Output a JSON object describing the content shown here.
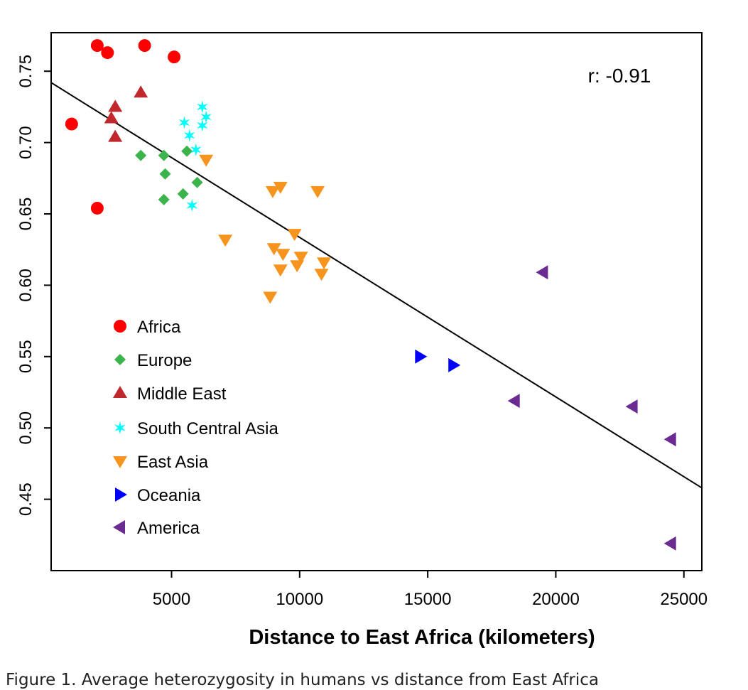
{
  "caption": "Figure 1. Average heterozygosity in humans vs distance from East Africa",
  "chart_data": {
    "type": "scatter",
    "title": "",
    "xlabel": "Distance to East Africa (kilometers)",
    "ylabel": "",
    "xlim": [
      300,
      25700
    ],
    "ylim": [
      0.4,
      0.777
    ],
    "x_ticks": [
      5000,
      10000,
      15000,
      20000,
      25000
    ],
    "x_tick_labels": [
      "5000",
      "10000",
      "15000",
      "20000",
      "25000"
    ],
    "y_ticks": [
      0.45,
      0.5,
      0.55,
      0.6,
      0.65,
      0.7,
      0.75
    ],
    "y_tick_labels": [
      "0.45",
      "0.50",
      "0.55",
      "0.60",
      "0.65",
      "0.70",
      "0.75"
    ],
    "annotation": "r: -0.91",
    "grid": false,
    "legend_position": "bottom-left",
    "regression_line": {
      "x": [
        300,
        25700
      ],
      "y": [
        0.742,
        0.458
      ]
    },
    "series": [
      {
        "name": "Africa",
        "marker": "circle",
        "color": "#ff0000",
        "x": [
          2100,
          2500,
          3950,
          5100,
          1100,
          2100
        ],
        "y": [
          0.768,
          0.763,
          0.768,
          0.76,
          0.713,
          0.654
        ]
      },
      {
        "name": "Europe",
        "marker": "diamond",
        "color": "#3cb44b",
        "x": [
          3800,
          4700,
          4750,
          5600,
          6000,
          5450,
          4700
        ],
        "y": [
          0.691,
          0.691,
          0.678,
          0.694,
          0.672,
          0.664,
          0.66
        ]
      },
      {
        "name": "Middle East",
        "marker": "triangle-up",
        "color": "#c0282d",
        "x": [
          3800,
          2800,
          2650,
          2800
        ],
        "y": [
          0.735,
          0.725,
          0.717,
          0.704
        ]
      },
      {
        "name": "South Central Asia",
        "marker": "star",
        "color": "#00ffff",
        "x": [
          6200,
          6350,
          5500,
          6200,
          5700,
          5950,
          5800
        ],
        "y": [
          0.725,
          0.718,
          0.714,
          0.712,
          0.705,
          0.695,
          0.656
        ]
      },
      {
        "name": "East Asia",
        "marker": "triangle-down",
        "color": "#f7941d",
        "x": [
          6350,
          9250,
          8950,
          10700,
          9800,
          7100,
          9000,
          9350,
          10050,
          9900,
          10950,
          9250,
          10850,
          8850
        ],
        "y": [
          0.688,
          0.669,
          0.666,
          0.666,
          0.636,
          0.632,
          0.626,
          0.622,
          0.62,
          0.614,
          0.616,
          0.611,
          0.608,
          0.592
        ]
      },
      {
        "name": "Oceania",
        "marker": "triangle-right",
        "color": "#0000ff",
        "x": [
          14700,
          16000
        ],
        "y": [
          0.55,
          0.544
        ]
      },
      {
        "name": "America",
        "marker": "triangle-left",
        "color": "#6a2c91",
        "x": [
          19500,
          18400,
          23000,
          24500,
          24500
        ],
        "y": [
          0.609,
          0.519,
          0.515,
          0.492,
          0.419
        ]
      }
    ]
  }
}
